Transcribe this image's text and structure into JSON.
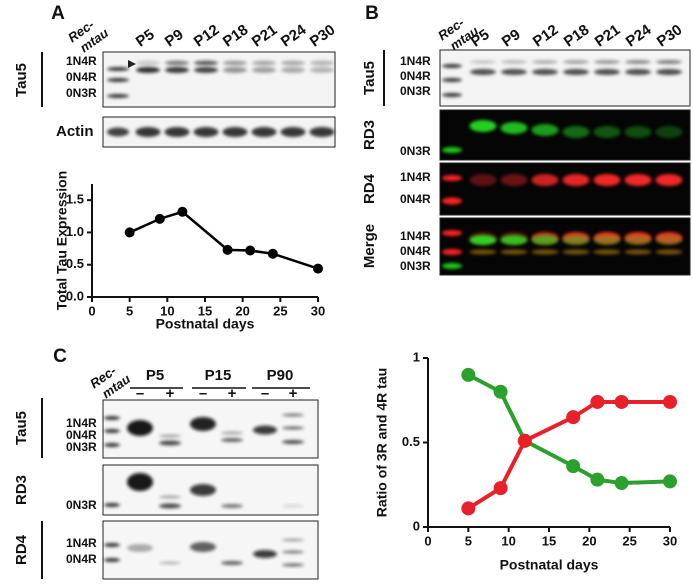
{
  "panel_labels": [
    "A",
    "B",
    "C"
  ],
  "blot_a": {
    "rec": [
      "Rec-",
      "mtau"
    ],
    "lanes": [
      "P5",
      "P9",
      "P12",
      "P18",
      "P21",
      "P24",
      "P30"
    ],
    "rows": [
      "Tau5",
      "Actin"
    ],
    "bands": [
      "1N4R",
      "0N4R",
      "0N3R"
    ]
  },
  "blot_b": {
    "rec": [
      "Rec-",
      "mtau"
    ],
    "lanes": [
      "P5",
      "P9",
      "P12",
      "P18",
      "P21",
      "P24",
      "P30"
    ],
    "rows": [
      "Tau5",
      "RD3",
      "RD4",
      "Merge"
    ],
    "tau5_bands": [
      "1N4R",
      "0N4R",
      "0N3R"
    ],
    "rd3_bands": [
      "0N3R"
    ],
    "rd4_bands": [
      "1N4R",
      "0N4R"
    ],
    "merge_bands": [
      "1N4R",
      "0N4R",
      "0N3R"
    ]
  },
  "blot_c": {
    "rec": [
      "Rec-",
      "mtau"
    ],
    "groups": [
      "P5",
      "P15",
      "P90"
    ],
    "treatments": [
      "–",
      "+",
      "–",
      "+",
      "–",
      "+"
    ],
    "rows": [
      "Tau5",
      "RD3",
      "RD4"
    ],
    "tau5_bands": [
      "1N4R",
      "0N4R",
      "0N3R"
    ],
    "rd3_bands": [
      "0N3R"
    ],
    "rd4_bands": [
      "1N4R",
      "0N4R"
    ]
  },
  "chart_data": [
    {
      "type": "line",
      "xlabel": "Postnatal days",
      "ylabel": "Total Tau Expression",
      "x": [
        5,
        9,
        12,
        18,
        21,
        24,
        30
      ],
      "xlim": [
        0,
        30
      ],
      "xticks": [
        0,
        5,
        10,
        15,
        20,
        25,
        30
      ],
      "ylim": [
        0,
        1.75
      ],
      "yticks": [
        {
          "value": 0,
          "label": "0.0"
        },
        0.5,
        {
          "value": 1,
          "label": "1.0"
        },
        1.5
      ],
      "series": [
        {
          "color": "#000000",
          "values": [
            1.0,
            1.21,
            1.32,
            0.73,
            0.72,
            0.67,
            0.44
          ],
          "errors": [
            0.03,
            0.07,
            0.06,
            0.06,
            0.06,
            0.07,
            0.05
          ]
        }
      ]
    },
    {
      "type": "line",
      "xlabel": "Postnatal days",
      "ylabel": "Ratio of 3R and 4R tau",
      "x": [
        5,
        9,
        12,
        18,
        21,
        24,
        30
      ],
      "xlim": [
        0,
        30
      ],
      "xticks": [
        0,
        5,
        10,
        15,
        20,
        25,
        30
      ],
      "ylim": [
        0,
        1
      ],
      "yticks": [
        0,
        0.5,
        1
      ],
      "series": [
        {
          "color": "#2ca02c",
          "values": [
            0.9,
            0.8,
            0.51,
            0.36,
            0.28,
            0.26,
            0.27
          ],
          "errors": [
            0.03,
            0.03,
            0.03,
            0.04,
            0.04,
            0.04,
            0.03
          ]
        },
        {
          "color": "#e8202a",
          "values": [
            0.11,
            0.23,
            0.51,
            0.65,
            0.74,
            0.74,
            0.74
          ],
          "errors": [
            0.03,
            0.04,
            0.03,
            0.04,
            0.04,
            0.04,
            0.03
          ]
        }
      ]
    }
  ]
}
